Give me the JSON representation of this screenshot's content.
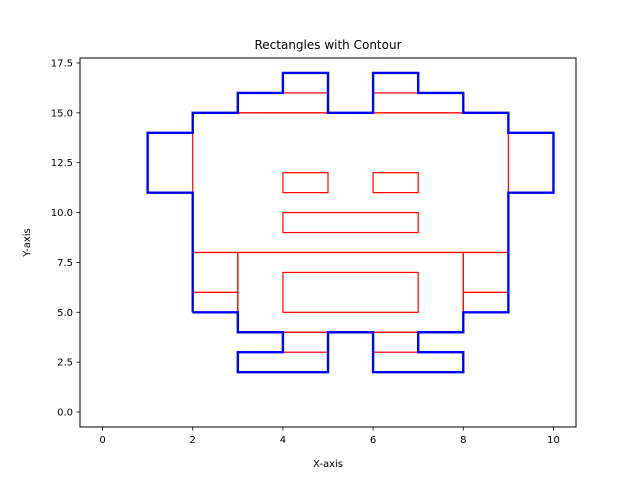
{
  "chart_data": {
    "type": "line",
    "title": "Rectangles with Contour",
    "xlabel": "X-axis",
    "ylabel": "Y-axis",
    "xlim": [
      -0.5,
      10.5
    ],
    "ylim": [
      -0.75,
      17.75
    ],
    "xticks": [
      0,
      2,
      4,
      6,
      8,
      10
    ],
    "xtick_labels": [
      "0",
      "2",
      "4",
      "6",
      "8",
      "10"
    ],
    "yticks": [
      0,
      2.5,
      5,
      7.5,
      10,
      12.5,
      15,
      17.5
    ],
    "ytick_labels": [
      "0.0",
      "2.5",
      "5.0",
      "7.5",
      "10.0",
      "12.5",
      "15.0",
      "17.5"
    ],
    "grid": false,
    "colors": {
      "rectangles": "#ff0000",
      "contour": "#0000ff"
    },
    "rectangles": [
      {
        "x": 2,
        "y": 5,
        "w": 1,
        "h": 1
      },
      {
        "x": 2,
        "y": 6,
        "w": 1,
        "h": 2
      },
      {
        "x": 8,
        "y": 5,
        "w": 1,
        "h": 1
      },
      {
        "x": 8,
        "y": 6,
        "w": 1,
        "h": 2
      },
      {
        "x": 3,
        "y": 4,
        "w": 5,
        "h": 4
      },
      {
        "x": 4,
        "y": 5,
        "w": 3,
        "h": 2
      },
      {
        "x": 4,
        "y": 3,
        "w": 1,
        "h": 1
      },
      {
        "x": 6,
        "y": 3,
        "w": 1,
        "h": 1
      },
      {
        "x": 2,
        "y": 8,
        "w": 7,
        "h": 7
      },
      {
        "x": 4,
        "y": 9,
        "w": 3,
        "h": 1
      },
      {
        "x": 4,
        "y": 11,
        "w": 1,
        "h": 1
      },
      {
        "x": 6,
        "y": 11,
        "w": 1,
        "h": 1
      },
      {
        "x": 3,
        "y": 15,
        "w": 2,
        "h": 1
      },
      {
        "x": 6,
        "y": 15,
        "w": 2,
        "h": 1
      }
    ],
    "contour": [
      [
        2,
        5
      ],
      [
        3,
        5
      ],
      [
        3,
        4
      ],
      [
        4,
        4
      ],
      [
        4,
        3
      ],
      [
        3,
        3
      ],
      [
        3,
        2
      ],
      [
        5,
        2
      ],
      [
        5,
        4
      ],
      [
        6,
        4
      ],
      [
        6,
        2
      ],
      [
        8,
        2
      ],
      [
        8,
        3
      ],
      [
        7,
        3
      ],
      [
        7,
        4
      ],
      [
        8,
        4
      ],
      [
        8,
        5
      ],
      [
        9,
        5
      ],
      [
        9,
        11
      ],
      [
        10,
        11
      ],
      [
        10,
        14
      ],
      [
        9,
        14
      ],
      [
        9,
        15
      ],
      [
        8,
        15
      ],
      [
        8,
        16
      ],
      [
        7,
        16
      ],
      [
        7,
        17
      ],
      [
        6,
        17
      ],
      [
        6,
        15
      ],
      [
        5,
        15
      ],
      [
        5,
        17
      ],
      [
        4,
        17
      ],
      [
        4,
        16
      ],
      [
        3,
        16
      ],
      [
        3,
        15
      ],
      [
        2,
        15
      ],
      [
        2,
        14
      ],
      [
        1,
        14
      ],
      [
        1,
        11
      ],
      [
        2,
        11
      ],
      [
        2,
        5
      ]
    ]
  }
}
